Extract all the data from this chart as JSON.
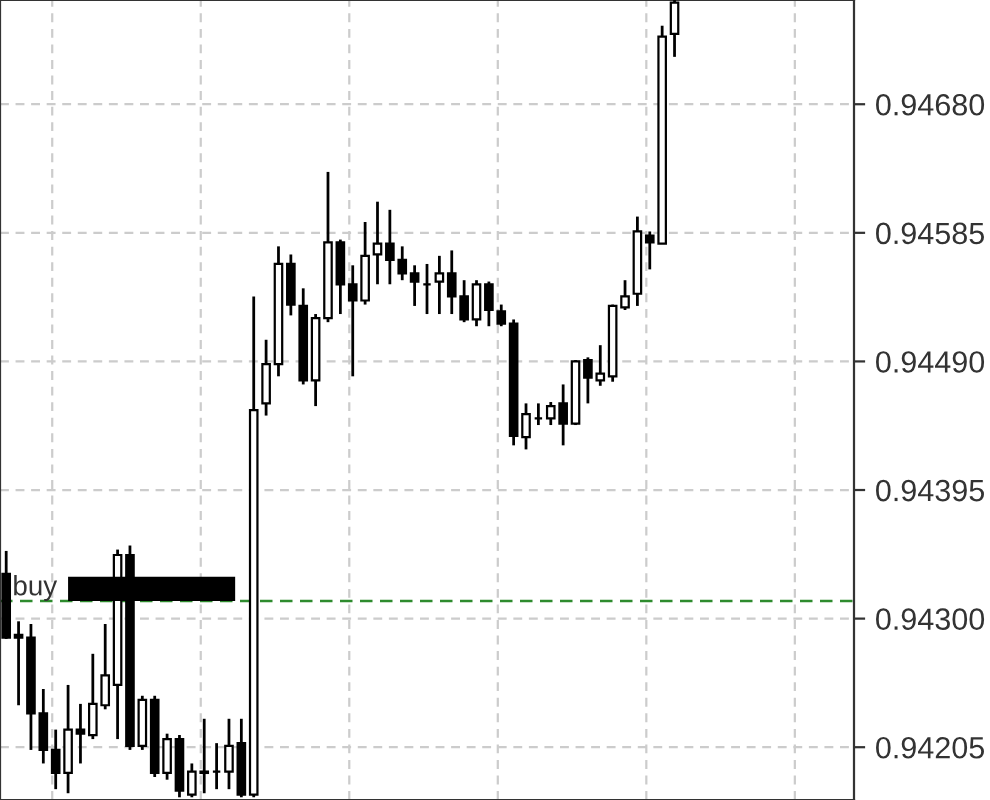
{
  "chart_data": {
    "type": "candlestick",
    "categories": [
      null,
      null,
      null,
      null,
      null,
      null,
      null,
      null,
      null,
      null,
      null,
      null,
      null,
      null,
      null,
      null,
      null,
      null,
      null,
      null,
      null,
      null,
      null,
      null,
      null,
      null,
      null,
      null,
      null,
      null,
      null,
      null,
      null,
      null,
      null,
      null,
      null,
      null,
      null,
      null,
      null,
      null,
      null,
      null,
      null,
      null,
      null,
      null,
      null,
      null,
      null,
      null,
      null,
      null,
      null,
      null,
      null,
      null,
      null,
      null,
      null,
      null,
      null,
      null,
      null,
      null,
      null,
      null,
      null
    ],
    "ohlc": [
      [
        0.94333,
        0.9435,
        0.94285,
        0.94286
      ],
      [
        0.94288,
        0.94298,
        0.94236,
        0.94286
      ],
      [
        0.94286,
        0.94296,
        0.94203,
        0.9423
      ],
      [
        0.9423,
        0.94248,
        0.94193,
        0.94203
      ],
      [
        0.94203,
        0.94218,
        0.94174,
        0.94186
      ],
      [
        0.94186,
        0.94251,
        0.94171,
        0.94218
      ],
      [
        0.94218,
        0.94237,
        0.94193,
        0.94215
      ],
      [
        0.94214,
        0.94274,
        0.94211,
        0.94237
      ],
      [
        0.94236,
        0.94296,
        0.94233,
        0.94258
      ],
      [
        0.94251,
        0.94351,
        0.94211,
        0.94347
      ],
      [
        0.94347,
        0.94354,
        0.94203,
        0.94206
      ],
      [
        0.94206,
        0.94243,
        0.94203,
        0.9424
      ],
      [
        0.9424,
        0.94243,
        0.94183,
        0.94186
      ],
      [
        0.94186,
        0.94215,
        0.94181,
        0.94211
      ],
      [
        0.94211,
        0.94214,
        0.94168,
        0.94173
      ],
      [
        0.9417,
        0.94193,
        0.94168,
        0.94187
      ],
      [
        0.94187,
        0.94226,
        0.94171,
        0.94186
      ],
      [
        0.94187,
        0.94208,
        0.94174,
        0.94187
      ],
      [
        0.94187,
        0.94226,
        0.94174,
        0.94206
      ],
      [
        0.94208,
        0.94226,
        0.94168,
        0.9417
      ],
      [
        0.9417,
        0.94538,
        0.94168,
        0.94454
      ],
      [
        0.94459,
        0.94506,
        0.9445,
        0.94488
      ],
      [
        0.94488,
        0.94575,
        0.94479,
        0.94562
      ],
      [
        0.94562,
        0.94569,
        0.94524,
        0.94532
      ],
      [
        0.94531,
        0.94544,
        0.94473,
        0.94476
      ],
      [
        0.94476,
        0.94525,
        0.94457,
        0.94522
      ],
      [
        0.94522,
        0.9463,
        0.94519,
        0.94578
      ],
      [
        0.94578,
        0.9458,
        0.94525,
        0.94547
      ],
      [
        0.94547,
        0.94561,
        0.94479,
        0.94535
      ],
      [
        0.94535,
        0.94593,
        0.94532,
        0.94568
      ],
      [
        0.94569,
        0.94608,
        0.94547,
        0.94577
      ],
      [
        0.94577,
        0.94602,
        0.94547,
        0.94565
      ],
      [
        0.94565,
        0.94575,
        0.9455,
        0.94555
      ],
      [
        0.94555,
        0.94561,
        0.94531,
        0.94549
      ],
      [
        0.94547,
        0.94562,
        0.94525,
        0.94547
      ],
      [
        0.94549,
        0.94568,
        0.94525,
        0.94555
      ],
      [
        0.94555,
        0.94572,
        0.94525,
        0.94538
      ],
      [
        0.94538,
        0.9455,
        0.94519,
        0.94521
      ],
      [
        0.94521,
        0.9455,
        0.94516,
        0.94547
      ],
      [
        0.94547,
        0.94549,
        0.94516,
        0.94528
      ],
      [
        0.94527,
        0.94532,
        0.94516,
        0.94518
      ],
      [
        0.94518,
        0.94521,
        0.94428,
        0.94435
      ],
      [
        0.94434,
        0.94459,
        0.94425,
        0.94451
      ],
      [
        0.94448,
        0.94459,
        0.94443,
        0.94448
      ],
      [
        0.94448,
        0.9446,
        0.94443,
        0.94457
      ],
      [
        0.94459,
        0.94473,
        0.94428,
        0.94444
      ],
      [
        0.94444,
        0.94491,
        0.94443,
        0.9449
      ],
      [
        0.94491,
        0.94493,
        0.94459,
        0.94478
      ],
      [
        0.94476,
        0.94502,
        0.94472,
        0.94481
      ],
      [
        0.94479,
        0.94532,
        0.94475,
        0.94531
      ],
      [
        0.9453,
        0.9455,
        0.94528,
        0.94538
      ],
      [
        0.9454,
        0.94597,
        0.94531,
        0.94586
      ],
      [
        0.94583,
        0.94586,
        0.94558,
        0.94578
      ],
      [
        0.94577,
        0.94738,
        0.94577,
        0.9473
      ],
      [
        0.94732,
        0.94757,
        0.94715,
        0.94755
      ],
      null,
      null,
      null,
      null,
      null,
      null,
      null,
      null,
      null,
      null,
      null,
      null,
      null,
      null
    ],
    "ylim": [
      0.94166,
      0.94757
    ],
    "yticks": [
      {
        "value": 0.94205,
        "label": "0.94205"
      },
      {
        "value": 0.943,
        "label": "0.94300"
      },
      {
        "value": 0.94395,
        "label": "0.94395"
      },
      {
        "value": 0.9449,
        "label": "0.94490"
      },
      {
        "value": 0.94585,
        "label": "0.94585"
      },
      {
        "value": 0.9468,
        "label": "0.94680"
      }
    ],
    "ref_lines": [
      {
        "axis": "y",
        "value": 0.94313,
        "label": "buy",
        "color": "#2e8b2e",
        "line_style": "dashed"
      }
    ],
    "grid": true,
    "tick_labels": "y"
  }
}
